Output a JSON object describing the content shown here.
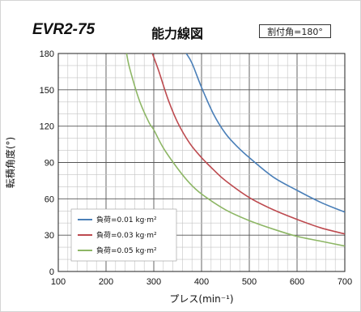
{
  "header": {
    "model": "EVR2-75",
    "title": "能力線図",
    "badge": "割付角=180°"
  },
  "chart_data": {
    "type": "line",
    "title": "能力線図",
    "xlabel": "プレス(min⁻¹)",
    "ylabel": "転積角度(°)",
    "xlim": [
      100,
      700
    ],
    "ylim": [
      0,
      180
    ],
    "x_ticks": [
      100,
      200,
      300,
      400,
      500,
      600,
      700
    ],
    "y_ticks": [
      0,
      30,
      60,
      90,
      120,
      150,
      180
    ],
    "grid": true,
    "legend_position": "bottom-left",
    "series": [
      {
        "name": "負荷=0.01 kg·m²",
        "color": "#4a7fb8",
        "x": [
          368,
          380,
          400,
          425,
          450,
          475,
          500,
          550,
          600,
          650,
          700
        ],
        "y": [
          180,
          172,
          152,
          130,
          114,
          103,
          94,
          78,
          67,
          57,
          49
        ]
      },
      {
        "name": "負荷=0.03 kg·m²",
        "color": "#bd4a4f",
        "x": [
          297,
          310,
          330,
          350,
          375,
          400,
          425,
          450,
          500,
          550,
          600,
          650,
          700
        ],
        "y": [
          180,
          166,
          142,
          123,
          106,
          94,
          84,
          75,
          61,
          51,
          43,
          36,
          31
        ]
      },
      {
        "name": "負荷=0.05 kg·m²",
        "color": "#8db665",
        "x": [
          243,
          250,
          270,
          290,
          300,
          320,
          350,
          375,
          400,
          450,
          500,
          550,
          600,
          650,
          700
        ],
        "y": [
          180,
          167,
          141,
          123,
          117,
          102,
          85,
          73,
          64,
          51,
          42,
          35,
          29,
          25,
          21
        ]
      }
    ]
  }
}
